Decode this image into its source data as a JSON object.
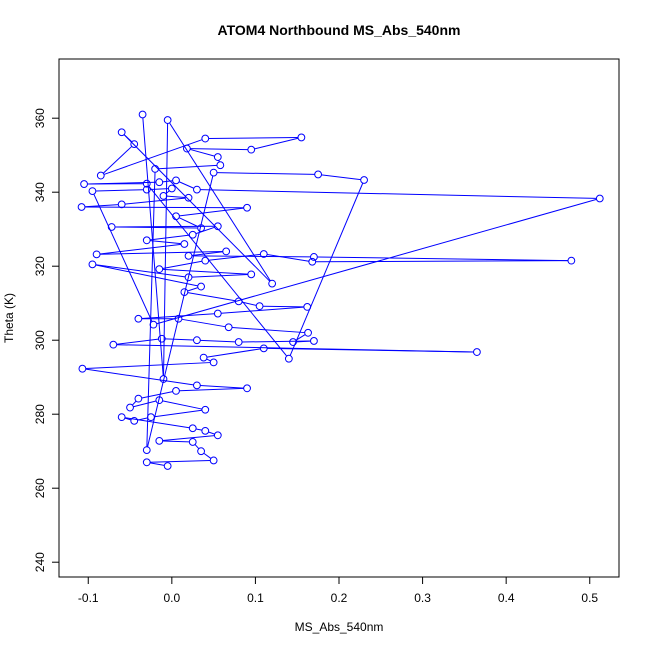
{
  "chart_data": {
    "type": "line",
    "title": "ATOM4 Northbound MS_Abs_540nm",
    "xlabel": "MS_Abs_540nm",
    "ylabel": "Theta (K)",
    "xlim": [
      -0.135,
      0.535
    ],
    "ylim": [
      236,
      376
    ],
    "x_ticks": [
      -0.1,
      0.0,
      0.1,
      0.2,
      0.3,
      0.4,
      0.5
    ],
    "x_tick_labels": [
      "-0.1",
      "0.0",
      "0.1",
      "0.2",
      "0.3",
      "0.4",
      "0.5"
    ],
    "y_ticks": [
      240,
      260,
      280,
      300,
      320,
      340,
      360
    ],
    "y_tick_labels": [
      "240",
      "260",
      "280",
      "300",
      "320",
      "340",
      "360"
    ],
    "grid": false,
    "series_color": "#0000ff",
    "marker": "open-circle",
    "series": [
      {
        "points": [
          [
            -0.035,
            361.0
          ],
          [
            -0.005,
            359.5
          ],
          [
            -0.06,
            356.2
          ],
          [
            -0.045,
            353.0
          ],
          [
            -0.085,
            344.5
          ],
          [
            0.04,
            354.5
          ],
          [
            0.155,
            354.8
          ],
          [
            0.095,
            351.5
          ],
          [
            0.018,
            351.8
          ],
          [
            0.055,
            349.5
          ],
          [
            0.058,
            347.3
          ],
          [
            -0.02,
            346.3
          ],
          [
            0.05,
            345.3
          ],
          [
            0.175,
            344.8
          ],
          [
            0.23,
            343.3
          ],
          [
            -0.03,
            342.3
          ],
          [
            -0.105,
            342.2
          ],
          [
            -0.015,
            342.7
          ],
          [
            0.005,
            343.2
          ],
          [
            0.03,
            340.7
          ],
          [
            0.512,
            338.3
          ],
          [
            -0.095,
            340.3
          ],
          [
            -0.03,
            340.7
          ],
          [
            0.0,
            341.0
          ],
          [
            -0.01,
            339.0
          ],
          [
            0.02,
            338.5
          ],
          [
            -0.06,
            336.7
          ],
          [
            -0.108,
            336.0
          ],
          [
            0.09,
            335.8
          ],
          [
            0.005,
            333.5
          ],
          [
            0.035,
            330.3
          ],
          [
            -0.072,
            330.6
          ],
          [
            0.055,
            330.8
          ],
          [
            0.025,
            328.5
          ],
          [
            -0.03,
            327.0
          ],
          [
            0.015,
            326.0
          ],
          [
            -0.09,
            323.2
          ],
          [
            0.065,
            324.0
          ],
          [
            0.02,
            322.8
          ],
          [
            0.17,
            322.5
          ],
          [
            0.478,
            321.5
          ],
          [
            0.168,
            321.2
          ],
          [
            0.11,
            323.3
          ],
          [
            0.04,
            321.5
          ],
          [
            -0.015,
            319.2
          ],
          [
            0.095,
            317.8
          ],
          [
            0.02,
            317.0
          ],
          [
            -0.095,
            320.5
          ],
          [
            0.12,
            315.3
          ],
          [
            0.035,
            314.5
          ],
          [
            0.015,
            313.0
          ],
          [
            0.08,
            310.5
          ],
          [
            0.105,
            309.2
          ],
          [
            0.162,
            309.0
          ],
          [
            0.055,
            307.2
          ],
          [
            -0.04,
            305.8
          ],
          [
            0.008,
            305.8
          ],
          [
            -0.022,
            304.2
          ],
          [
            0.068,
            303.5
          ],
          [
            0.163,
            302.0
          ],
          [
            0.145,
            299.5
          ],
          [
            0.17,
            299.8
          ],
          [
            0.08,
            299.5
          ],
          [
            0.03,
            300.0
          ],
          [
            -0.012,
            300.4
          ],
          [
            -0.07,
            298.8
          ],
          [
            0.365,
            296.8
          ],
          [
            0.14,
            295.0
          ],
          [
            0.11,
            297.8
          ],
          [
            0.038,
            295.3
          ],
          [
            0.05,
            294.0
          ],
          [
            -0.107,
            292.3
          ],
          [
            -0.01,
            289.5
          ],
          [
            0.03,
            287.8
          ],
          [
            0.09,
            287.0
          ],
          [
            0.005,
            286.3
          ],
          [
            -0.04,
            284.2
          ],
          [
            -0.05,
            281.8
          ],
          [
            -0.015,
            283.8
          ],
          [
            0.04,
            281.2
          ],
          [
            -0.025,
            279.2
          ],
          [
            -0.045,
            278.2
          ],
          [
            -0.06,
            279.2
          ],
          [
            0.025,
            276.2
          ],
          [
            0.04,
            275.5
          ],
          [
            0.055,
            274.3
          ],
          [
            -0.015,
            272.8
          ],
          [
            0.025,
            272.5
          ],
          [
            -0.03,
            270.3
          ],
          [
            0.035,
            270.0
          ],
          [
            0.05,
            267.5
          ],
          [
            -0.03,
            267.0
          ],
          [
            -0.005,
            266.0
          ]
        ],
        "path_order": [
          0,
          72,
          1,
          48,
          2,
          3,
          4,
          5,
          6,
          7,
          8,
          9,
          10,
          11,
          88,
          12,
          13,
          14,
          67,
          15,
          16,
          17,
          18,
          19,
          20,
          57,
          21,
          22,
          23,
          24,
          25,
          26,
          27,
          28,
          29,
          30,
          31,
          32,
          33,
          34,
          35,
          36,
          37,
          38,
          39,
          40,
          41,
          42,
          43,
          44,
          45,
          46,
          47,
          49,
          50,
          51,
          52,
          53,
          54,
          55,
          56,
          58,
          59,
          60,
          61,
          62,
          63,
          64,
          65,
          66,
          68,
          69,
          70,
          71,
          73,
          74,
          75,
          76,
          77,
          78,
          79,
          80,
          81,
          82,
          83,
          84,
          85,
          86,
          87,
          89,
          90,
          91,
          92
        ]
      }
    ]
  }
}
